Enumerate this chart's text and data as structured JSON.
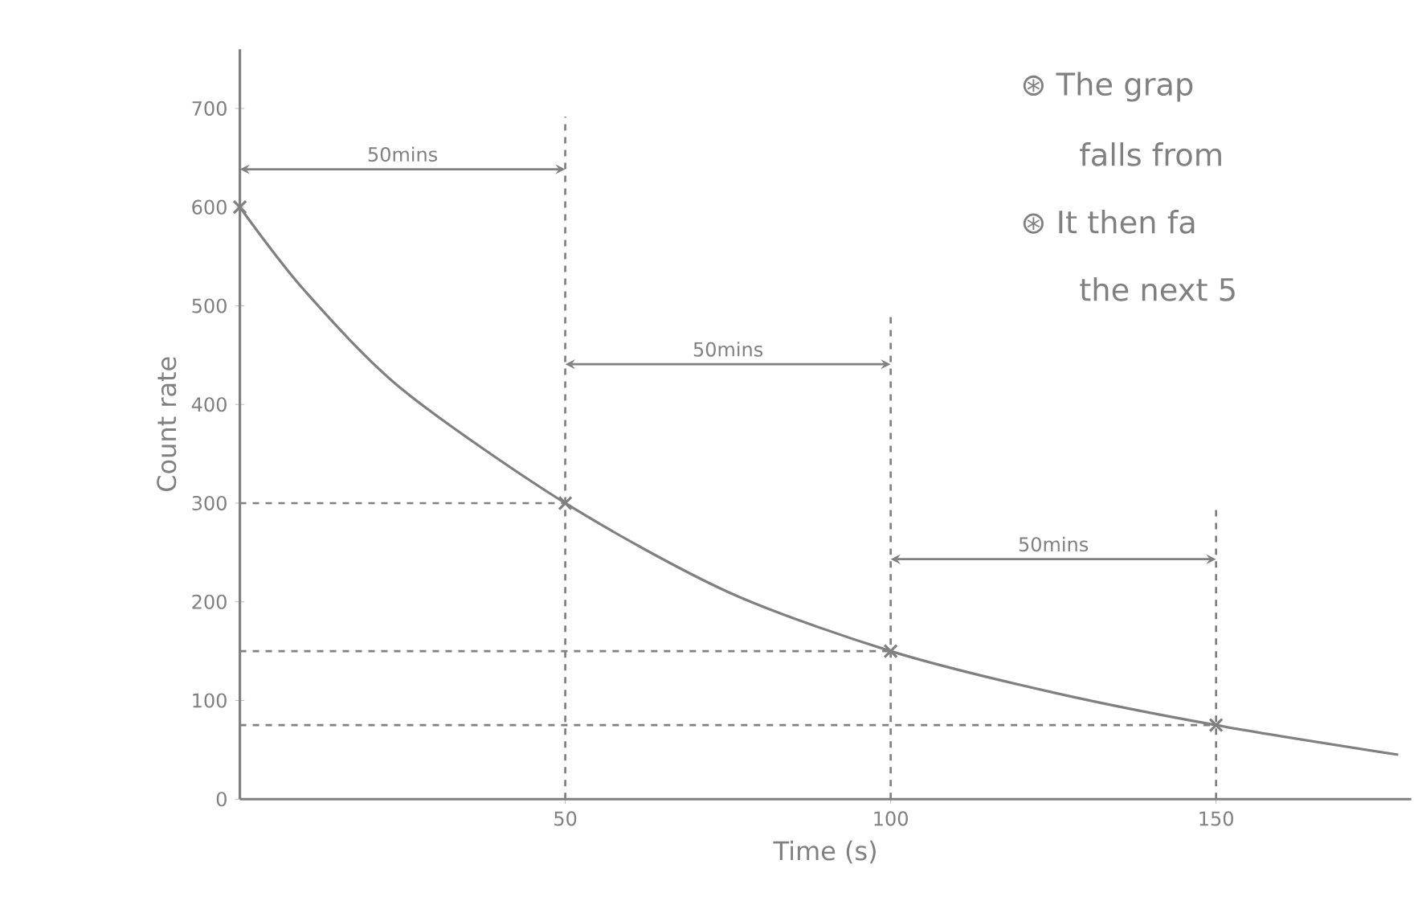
{
  "chart_data": {
    "type": "line",
    "xlabel": "Time (s)",
    "ylabel": "Count rate",
    "xlim": [
      0,
      180
    ],
    "ylim": [
      0,
      760
    ],
    "xticks": [
      50,
      100,
      150
    ],
    "yticks": [
      0,
      100,
      200,
      300,
      400,
      500,
      600,
      700
    ],
    "series": [
      {
        "type": "line",
        "color": "#808080",
        "marker": "none",
        "x": [
          0,
          10,
          25,
          50,
          75,
          100,
          125,
          150,
          178
        ],
        "values": [
          600,
          515,
          415,
          300,
          210,
          150,
          108,
          75,
          45
        ]
      },
      {
        "type": "scatter",
        "color": "#808080",
        "marker": "cross",
        "x": [
          0,
          50,
          100,
          150
        ],
        "values": [
          600,
          300,
          150,
          75
        ]
      }
    ],
    "ref_lines": [
      {
        "axis": "x",
        "value": 50,
        "line_style": "dashed"
      },
      {
        "axis": "x",
        "value": 100,
        "line_style": "dashed"
      },
      {
        "axis": "x",
        "value": 150,
        "line_style": "dashed"
      },
      {
        "axis": "y",
        "value": 300,
        "line_style": "dashed"
      },
      {
        "axis": "y",
        "value": 150,
        "line_style": "dashed"
      },
      {
        "axis": "y",
        "value": 75,
        "line_style": "dashed"
      }
    ],
    "annotations": [
      "50mins",
      "50mins",
      "50mins",
      "⊛ The grap",
      "falls from",
      "⊛ It then fa",
      "the next 5"
    ]
  }
}
